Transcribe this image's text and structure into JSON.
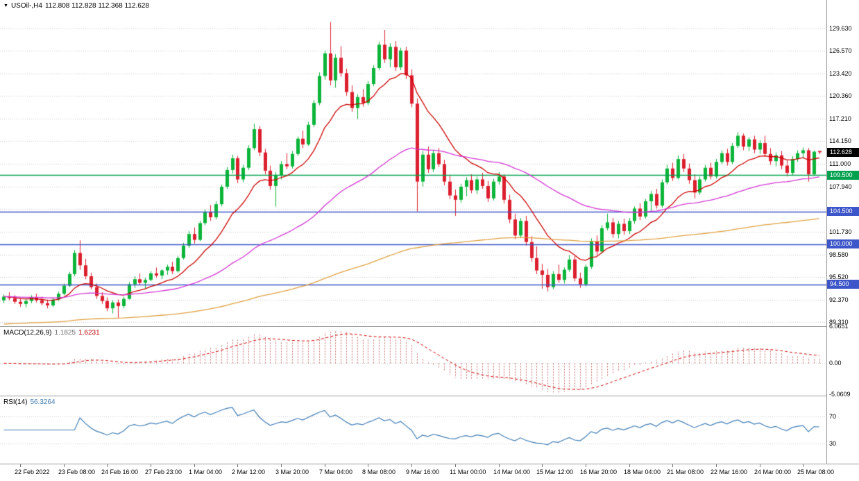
{
  "header": {
    "symbol_period": "USOil-,H4",
    "ohlc": "112.808 112.828 112.368 112.628"
  },
  "macd": {
    "name": "MACD(12,26,9)",
    "value_main": "1.1825",
    "value_signal": "1.6231",
    "ticks": [
      {
        "label": "6.0651",
        "value": 6.0651
      },
      {
        "label": "0.00",
        "value": 0
      },
      {
        "label": "-5.0609",
        "value": -5.0609
      }
    ]
  },
  "rsi": {
    "name": "RSI(14)",
    "value": "56.3264",
    "levels": [
      70,
      30
    ],
    "period": 14
  },
  "colors": {
    "up": "#0cb43a",
    "down": "#dc1f2e",
    "grid": "#c9c9c9",
    "ma_fast": "#cc0000",
    "ma_mid": "#d335d3",
    "ma_slow": "#dfa040",
    "hline_green": "#00a14e",
    "hline_blue": "#3c55c8",
    "macd_hist": "#c46a6a",
    "macd_signal": "#cc0000",
    "rsi_line": "#3f7cb6",
    "badge_current_bg": "#000000",
    "axis_text": "#000000"
  },
  "chart_data": {
    "type": "candlestick",
    "title": "USOil-,H4",
    "symbol": "USOil",
    "timeframe": "H4",
    "last_ohlc": {
      "open": 112.808,
      "high": 112.828,
      "low": 112.368,
      "close": 112.628
    },
    "price_axis": {
      "ticks": [
        "129.630",
        "126.570",
        "123.420",
        "120.360",
        "117.210",
        "114.150",
        "111.000",
        "107.940",
        "101.730",
        "98.580",
        "95.520",
        "92.370",
        "89.310"
      ],
      "grid_extra": [
        104.88
      ],
      "range": [
        88.74,
        133.54
      ]
    },
    "hlines": [
      {
        "value": 109.5,
        "label": "109.500",
        "color": "#00a14e"
      },
      {
        "value": 104.5,
        "label": "104.500",
        "color": "#3c55c8"
      },
      {
        "value": 100.0,
        "label": "100.000",
        "color": "#3c55c8"
      },
      {
        "value": 94.5,
        "label": "94.500",
        "color": "#3c55c8"
      }
    ],
    "current_price": {
      "value": 112.628,
      "label": "112.628",
      "bg": "#000000"
    },
    "overlays": [
      {
        "name": "ma-fast",
        "period": 13,
        "color": "#cc0000"
      },
      {
        "name": "ma-mid",
        "period": 55,
        "color": "#d335d3"
      },
      {
        "name": "ma-slow",
        "period": 200,
        "color": "#dfa040",
        "seed": 89.0
      }
    ],
    "indicators": [
      {
        "name": "MACD",
        "params": [
          12,
          26,
          9
        ],
        "values": [
          1.1825,
          1.6231
        ]
      },
      {
        "name": "RSI",
        "params": [
          14
        ],
        "value": 56.3264
      }
    ],
    "x_label_start_bar": 3,
    "x_label_step": 8,
    "x_labels": [
      "22 Feb 2022",
      "23 Feb 08:00",
      "24 Feb 16:00",
      "27 Feb 23:00",
      "1 Mar 04:00",
      "2 Mar 12:00",
      "3 Mar 20:00",
      "7 Mar 04:00",
      "8 Mar 08:00",
      "9 Mar 16:00",
      "11 Mar 00:00",
      "14 Mar 04:00",
      "15 Mar 12:00",
      "16 Mar 20:00",
      "18 Mar 04:00",
      "21 Mar 08:00",
      "22 Mar 16:00",
      "24 Mar 00:00",
      "25 Mar 08:00"
    ],
    "ohlc": [
      [
        92.3,
        93.1,
        91.9,
        92.8
      ],
      [
        92.8,
        93.4,
        92.3,
        92.6
      ],
      [
        92.6,
        93.0,
        91.8,
        92.1
      ],
      [
        92.1,
        92.6,
        91.4,
        91.8
      ],
      [
        91.8,
        92.5,
        91.3,
        92.2
      ],
      [
        92.2,
        93.0,
        91.9,
        92.7
      ],
      [
        92.7,
        93.2,
        92.0,
        92.3
      ],
      [
        92.3,
        92.8,
        91.6,
        91.9
      ],
      [
        91.9,
        92.4,
        91.2,
        91.6
      ],
      [
        91.6,
        92.6,
        91.4,
        92.4
      ],
      [
        92.4,
        93.5,
        92.2,
        93.2
      ],
      [
        93.2,
        94.6,
        93.0,
        94.3
      ],
      [
        94.3,
        96.2,
        94.1,
        95.9
      ],
      [
        95.9,
        99.2,
        95.6,
        98.8
      ],
      [
        98.8,
        100.54,
        96.5,
        97.1
      ],
      [
        97.1,
        98.0,
        95.2,
        95.6
      ],
      [
        95.6,
        96.1,
        93.8,
        94.1
      ],
      [
        94.1,
        94.6,
        92.5,
        92.9
      ],
      [
        92.9,
        93.4,
        91.8,
        92.2
      ],
      [
        92.2,
        92.7,
        90.8,
        91.2
      ],
      [
        91.2,
        92.3,
        90.5,
        92.0
      ],
      [
        92.0,
        92.4,
        89.9,
        91.5
      ],
      [
        91.5,
        92.8,
        91.2,
        92.5
      ],
      [
        92.5,
        94.8,
        92.4,
        94.5
      ],
      [
        94.5,
        95.6,
        94.0,
        95.2
      ],
      [
        95.2,
        96.0,
        94.4,
        94.7
      ],
      [
        94.7,
        95.4,
        93.9,
        95.1
      ],
      [
        95.1,
        96.3,
        94.9,
        96.0
      ],
      [
        96.0,
        96.8,
        95.4,
        95.7
      ],
      [
        95.7,
        96.6,
        95.2,
        96.4
      ],
      [
        96.4,
        97.2,
        95.8,
        96.9
      ],
      [
        96.9,
        97.6,
        95.9,
        96.3
      ],
      [
        96.3,
        98.4,
        96.1,
        98.1
      ],
      [
        98.1,
        100.2,
        97.9,
        99.8
      ],
      [
        99.8,
        101.8,
        99.5,
        101.4
      ],
      [
        101.4,
        102.3,
        100.1,
        100.6
      ],
      [
        100.6,
        103.2,
        100.4,
        102.9
      ],
      [
        102.9,
        104.8,
        102.6,
        104.4
      ],
      [
        104.4,
        105.4,
        103.2,
        103.7
      ],
      [
        103.7,
        105.9,
        103.4,
        105.5
      ],
      [
        105.5,
        108.2,
        105.2,
        107.9
      ],
      [
        107.9,
        110.6,
        107.6,
        110.2
      ],
      [
        110.2,
        112.3,
        109.7,
        111.8
      ],
      [
        111.8,
        112.1,
        108.4,
        108.9
      ],
      [
        108.9,
        110.9,
        108.5,
        110.5
      ],
      [
        110.5,
        113.6,
        110.2,
        113.2
      ],
      [
        113.2,
        116.57,
        112.9,
        115.8
      ],
      [
        115.8,
        116.2,
        112.1,
        112.6
      ],
      [
        112.6,
        113.1,
        109.6,
        110.1
      ],
      [
        110.1,
        110.8,
        107.5,
        108.0
      ],
      [
        108.0,
        109.9,
        105.18,
        109.5
      ],
      [
        109.5,
        111.4,
        108.9,
        111.0
      ],
      [
        111.0,
        112.5,
        110.3,
        110.7
      ],
      [
        110.7,
        112.8,
        110.4,
        112.4
      ],
      [
        112.4,
        114.8,
        112.1,
        114.5
      ],
      [
        114.5,
        115.6,
        113.2,
        113.7
      ],
      [
        113.7,
        116.8,
        113.5,
        116.4
      ],
      [
        116.4,
        119.8,
        116.1,
        119.4
      ],
      [
        119.4,
        123.6,
        119.1,
        123.1
      ],
      [
        123.1,
        126.6,
        122.6,
        126.2
      ],
      [
        126.2,
        130.5,
        121.8,
        122.5
      ],
      [
        122.5,
        126.1,
        121.5,
        125.6
      ],
      [
        125.6,
        127.2,
        123.0,
        123.5
      ],
      [
        123.5,
        124.1,
        120.4,
        120.9
      ],
      [
        120.9,
        121.8,
        118.2,
        118.7
      ],
      [
        118.7,
        120.6,
        117.2,
        120.2
      ],
      [
        120.2,
        121.3,
        118.9,
        119.4
      ],
      [
        119.4,
        122.4,
        119.1,
        122.0
      ],
      [
        122.0,
        124.6,
        121.7,
        124.2
      ],
      [
        124.2,
        127.8,
        123.9,
        127.4
      ],
      [
        127.4,
        129.44,
        124.9,
        125.4
      ],
      [
        125.4,
        127.6,
        124.3,
        127.1
      ],
      [
        127.1,
        127.9,
        123.8,
        124.3
      ],
      [
        124.3,
        127.0,
        123.9,
        126.6
      ],
      [
        126.6,
        127.1,
        122.7,
        123.2
      ],
      [
        123.2,
        124.0,
        118.8,
        119.3
      ],
      [
        119.3,
        120.0,
        104.5,
        108.6
      ],
      [
        108.6,
        112.8,
        107.9,
        112.3
      ],
      [
        112.3,
        113.4,
        109.8,
        110.3
      ],
      [
        110.3,
        112.9,
        109.9,
        112.5
      ],
      [
        112.5,
        113.2,
        110.6,
        111.0
      ],
      [
        111.0,
        111.6,
        108.1,
        108.6
      ],
      [
        108.6,
        109.4,
        106.2,
        106.7
      ],
      [
        106.7,
        107.5,
        103.9,
        106.1
      ],
      [
        106.1,
        108.3,
        105.7,
        107.9
      ],
      [
        107.9,
        109.2,
        106.6,
        108.8
      ],
      [
        108.8,
        109.6,
        107.0,
        107.4
      ],
      [
        107.4,
        109.3,
        106.9,
        108.9
      ],
      [
        108.9,
        109.8,
        107.6,
        108.0
      ],
      [
        108.0,
        108.7,
        105.8,
        106.3
      ],
      [
        106.3,
        109.0,
        106.0,
        108.6
      ],
      [
        108.6,
        109.9,
        108.2,
        109.3
      ],
      [
        109.3,
        109.6,
        105.6,
        106.1
      ],
      [
        106.1,
        106.8,
        102.9,
        103.4
      ],
      [
        103.4,
        104.2,
        100.7,
        101.2
      ],
      [
        101.2,
        103.6,
        100.9,
        103.2
      ],
      [
        103.2,
        103.9,
        99.8,
        100.3
      ],
      [
        100.3,
        101.1,
        97.6,
        98.1
      ],
      [
        98.1,
        99.7,
        95.9,
        96.4
      ],
      [
        96.4,
        97.3,
        93.9,
        95.8
      ],
      [
        95.8,
        96.6,
        93.53,
        94.1
      ],
      [
        94.1,
        96.3,
        93.8,
        95.9
      ],
      [
        95.9,
        97.2,
        94.7,
        95.1
      ],
      [
        95.1,
        96.8,
        94.6,
        96.5
      ],
      [
        96.5,
        98.5,
        96.2,
        97.9
      ],
      [
        97.9,
        98.4,
        94.9,
        95.3
      ],
      [
        95.3,
        96.1,
        94.0,
        94.5
      ],
      [
        94.5,
        97.2,
        94.2,
        96.9
      ],
      [
        96.9,
        100.8,
        96.6,
        100.4
      ],
      [
        100.4,
        101.2,
        98.5,
        99.0
      ],
      [
        99.0,
        102.6,
        98.7,
        102.2
      ],
      [
        102.2,
        104.2,
        101.9,
        103.0
      ],
      [
        103.0,
        103.6,
        100.9,
        101.4
      ],
      [
        101.4,
        103.2,
        100.8,
        102.8
      ],
      [
        102.8,
        103.5,
        101.3,
        101.8
      ],
      [
        101.8,
        103.6,
        101.4,
        103.2
      ],
      [
        103.2,
        105.2,
        102.8,
        104.9
      ],
      [
        104.9,
        105.6,
        103.3,
        103.8
      ],
      [
        103.8,
        106.2,
        103.5,
        105.9
      ],
      [
        105.9,
        107.3,
        104.6,
        106.9
      ],
      [
        106.9,
        107.6,
        104.9,
        105.3
      ],
      [
        105.3,
        108.9,
        105.0,
        108.5
      ],
      [
        108.5,
        110.9,
        108.2,
        110.4
      ],
      [
        110.4,
        111.2,
        108.7,
        109.1
      ],
      [
        109.1,
        112.2,
        108.9,
        111.7
      ],
      [
        111.7,
        112.4,
        109.9,
        110.4
      ],
      [
        110.4,
        111.1,
        108.3,
        108.8
      ],
      [
        108.8,
        109.6,
        106.3,
        107.1
      ],
      [
        107.1,
        109.3,
        106.8,
        108.9
      ],
      [
        108.9,
        110.9,
        108.6,
        110.5
      ],
      [
        110.5,
        111.2,
        108.9,
        109.3
      ],
      [
        109.3,
        111.7,
        109.0,
        111.3
      ],
      [
        111.3,
        112.9,
        111.0,
        112.5
      ],
      [
        112.5,
        113.1,
        110.8,
        111.3
      ],
      [
        111.3,
        113.9,
        111.0,
        113.5
      ],
      [
        113.5,
        115.4,
        113.2,
        114.9
      ],
      [
        114.9,
        115.2,
        112.9,
        113.4
      ],
      [
        113.4,
        114.7,
        112.8,
        114.4
      ],
      [
        114.4,
        114.9,
        112.5,
        113.0
      ],
      [
        113.0,
        114.3,
        112.4,
        113.9
      ],
      [
        113.9,
        114.9,
        112.0,
        112.4
      ],
      [
        112.4,
        113.2,
        110.9,
        111.4
      ],
      [
        111.4,
        112.6,
        110.7,
        112.2
      ],
      [
        112.2,
        112.8,
        110.3,
        110.8
      ],
      [
        110.8,
        111.5,
        109.3,
        109.8
      ],
      [
        109.8,
        112.1,
        109.5,
        111.7
      ],
      [
        111.7,
        112.9,
        111.3,
        112.5
      ],
      [
        112.5,
        113.3,
        111.9,
        112.9
      ],
      [
        112.9,
        113.2,
        108.6,
        109.6
      ],
      [
        109.6,
        112.9,
        109.4,
        112.7
      ],
      [
        112.808,
        112.828,
        112.368,
        112.628
      ]
    ]
  }
}
